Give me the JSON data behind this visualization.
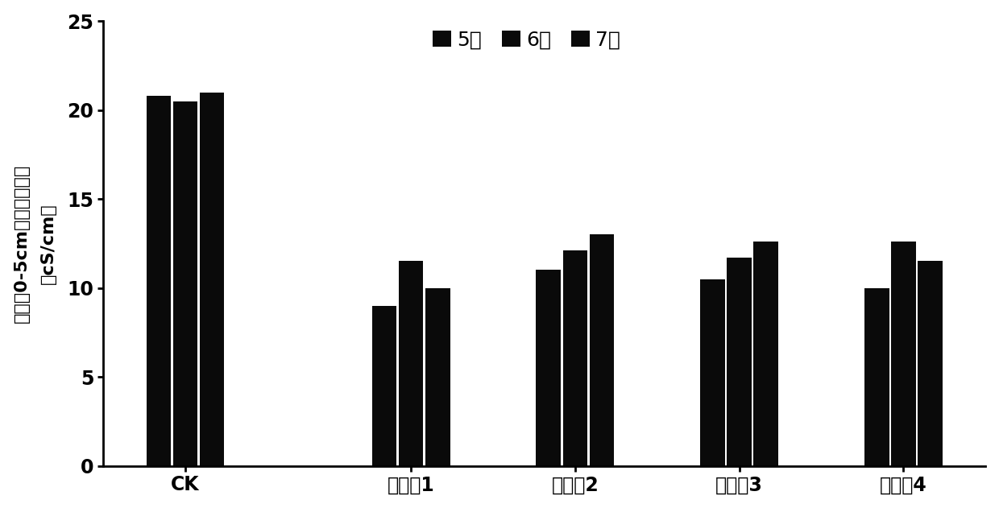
{
  "categories": [
    "CK",
    "实施外1",
    "实施外2",
    "实施外3",
    "实施外4"
  ],
  "series": [
    {
      "label": "5月",
      "values": [
        20.8,
        9.0,
        11.0,
        10.5,
        10.0
      ],
      "color": "#111111"
    },
    {
      "label": "6月",
      "values": [
        20.5,
        11.5,
        12.1,
        11.7,
        12.6
      ],
      "color": "#111111"
    },
    {
      "label": "7月",
      "values": [
        21.0,
        10.0,
        13.0,
        12.6,
        11.5
      ],
      "color": "#111111"
    }
  ],
  "ylabel_line1": "表层（0-5cm）土壤电导率",
  "ylabel_line2": "（cS/cm）",
  "ylim": [
    0,
    25
  ],
  "yticks": [
    0,
    5,
    10,
    15,
    20,
    25
  ],
  "bar_width": 0.6,
  "background_color": "#ffffff",
  "legend_fontsize": 18,
  "tick_fontsize": 17,
  "ylabel_fontsize": 16
}
